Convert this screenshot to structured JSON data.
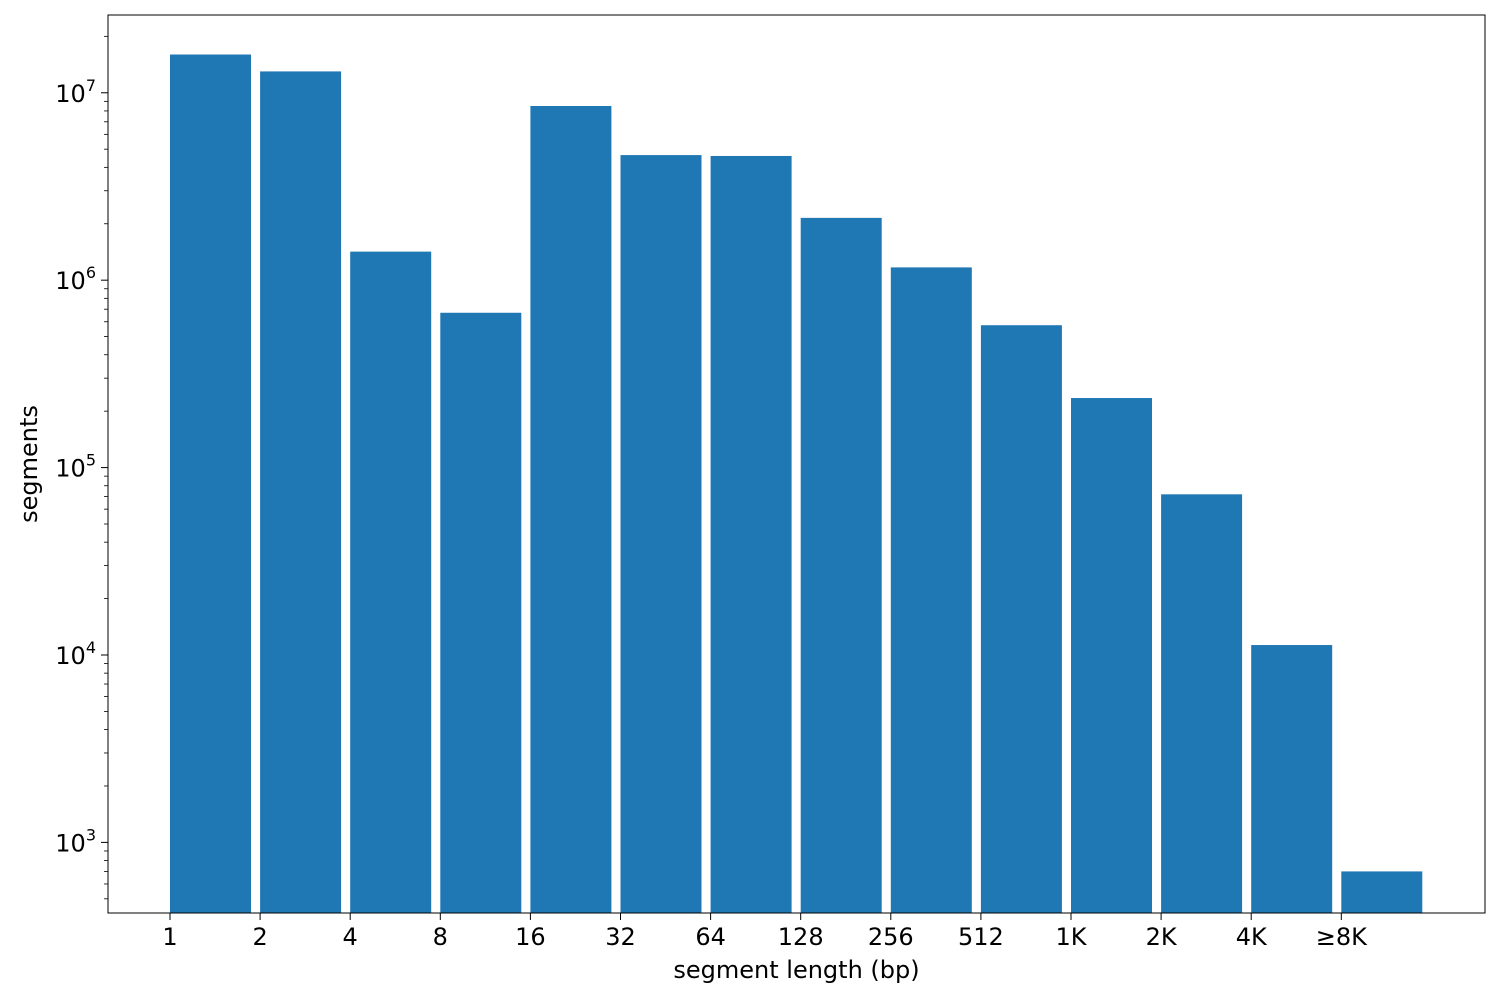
{
  "chart_data": {
    "type": "bar",
    "title": "",
    "xlabel": "segment length (bp)",
    "ylabel": "segments",
    "y_scale": "log",
    "ylim": [
      420,
      26000000
    ],
    "grid": false,
    "bar_color": "#1f77b4",
    "x_tick_labels": [
      "1",
      "2",
      "4",
      "8",
      "16",
      "32",
      "64",
      "128",
      "256",
      "512",
      "1K",
      "2K",
      "4K",
      "≥8K"
    ],
    "y_ticks": [
      {
        "value": 1000,
        "base": "10",
        "exp": "3"
      },
      {
        "value": 10000,
        "base": "10",
        "exp": "4"
      },
      {
        "value": 100000,
        "base": "10",
        "exp": "5"
      },
      {
        "value": 1000000,
        "base": "10",
        "exp": "6"
      },
      {
        "value": 10000000,
        "base": "10",
        "exp": "7"
      }
    ],
    "values": [
      16000000,
      13000000,
      1420000,
      670000,
      8500000,
      4650000,
      4600000,
      2150000,
      1170000,
      575000,
      235000,
      72000,
      11300,
      700
    ]
  }
}
